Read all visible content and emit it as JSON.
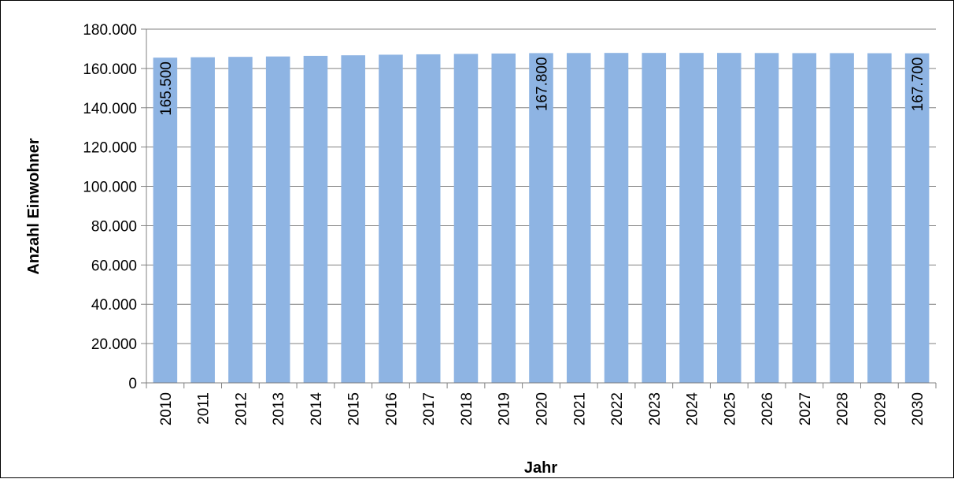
{
  "chart_data": {
    "type": "bar",
    "title": "",
    "xlabel": "Jahr",
    "ylabel": "Anzahl Einwohner",
    "ylim": [
      0,
      180000
    ],
    "yticks": [
      0,
      20000,
      40000,
      60000,
      80000,
      100000,
      120000,
      140000,
      160000,
      180000
    ],
    "ytick_labels": [
      "0",
      "20.000",
      "40.000",
      "60.000",
      "80.000",
      "100.000",
      "120.000",
      "140.000",
      "160.000",
      "180.000"
    ],
    "categories": [
      "2010",
      "2011",
      "2012",
      "2013",
      "2014",
      "2015",
      "2016",
      "2017",
      "2018",
      "2019",
      "2020",
      "2021",
      "2022",
      "2023",
      "2024",
      "2025",
      "2026",
      "2027",
      "2028",
      "2029",
      "2030"
    ],
    "values": [
      165500,
      165700,
      165900,
      166100,
      166400,
      166700,
      167000,
      167200,
      167400,
      167600,
      167800,
      167850,
      167900,
      167900,
      167900,
      167900,
      167850,
      167800,
      167800,
      167750,
      167700
    ],
    "data_labels": [
      {
        "category": "2010",
        "text": "165.500"
      },
      {
        "category": "2020",
        "text": "167.800"
      },
      {
        "category": "2030",
        "text": "167.700"
      }
    ],
    "bar_color": "#8eb4e3",
    "grid": true,
    "legend": "none"
  }
}
